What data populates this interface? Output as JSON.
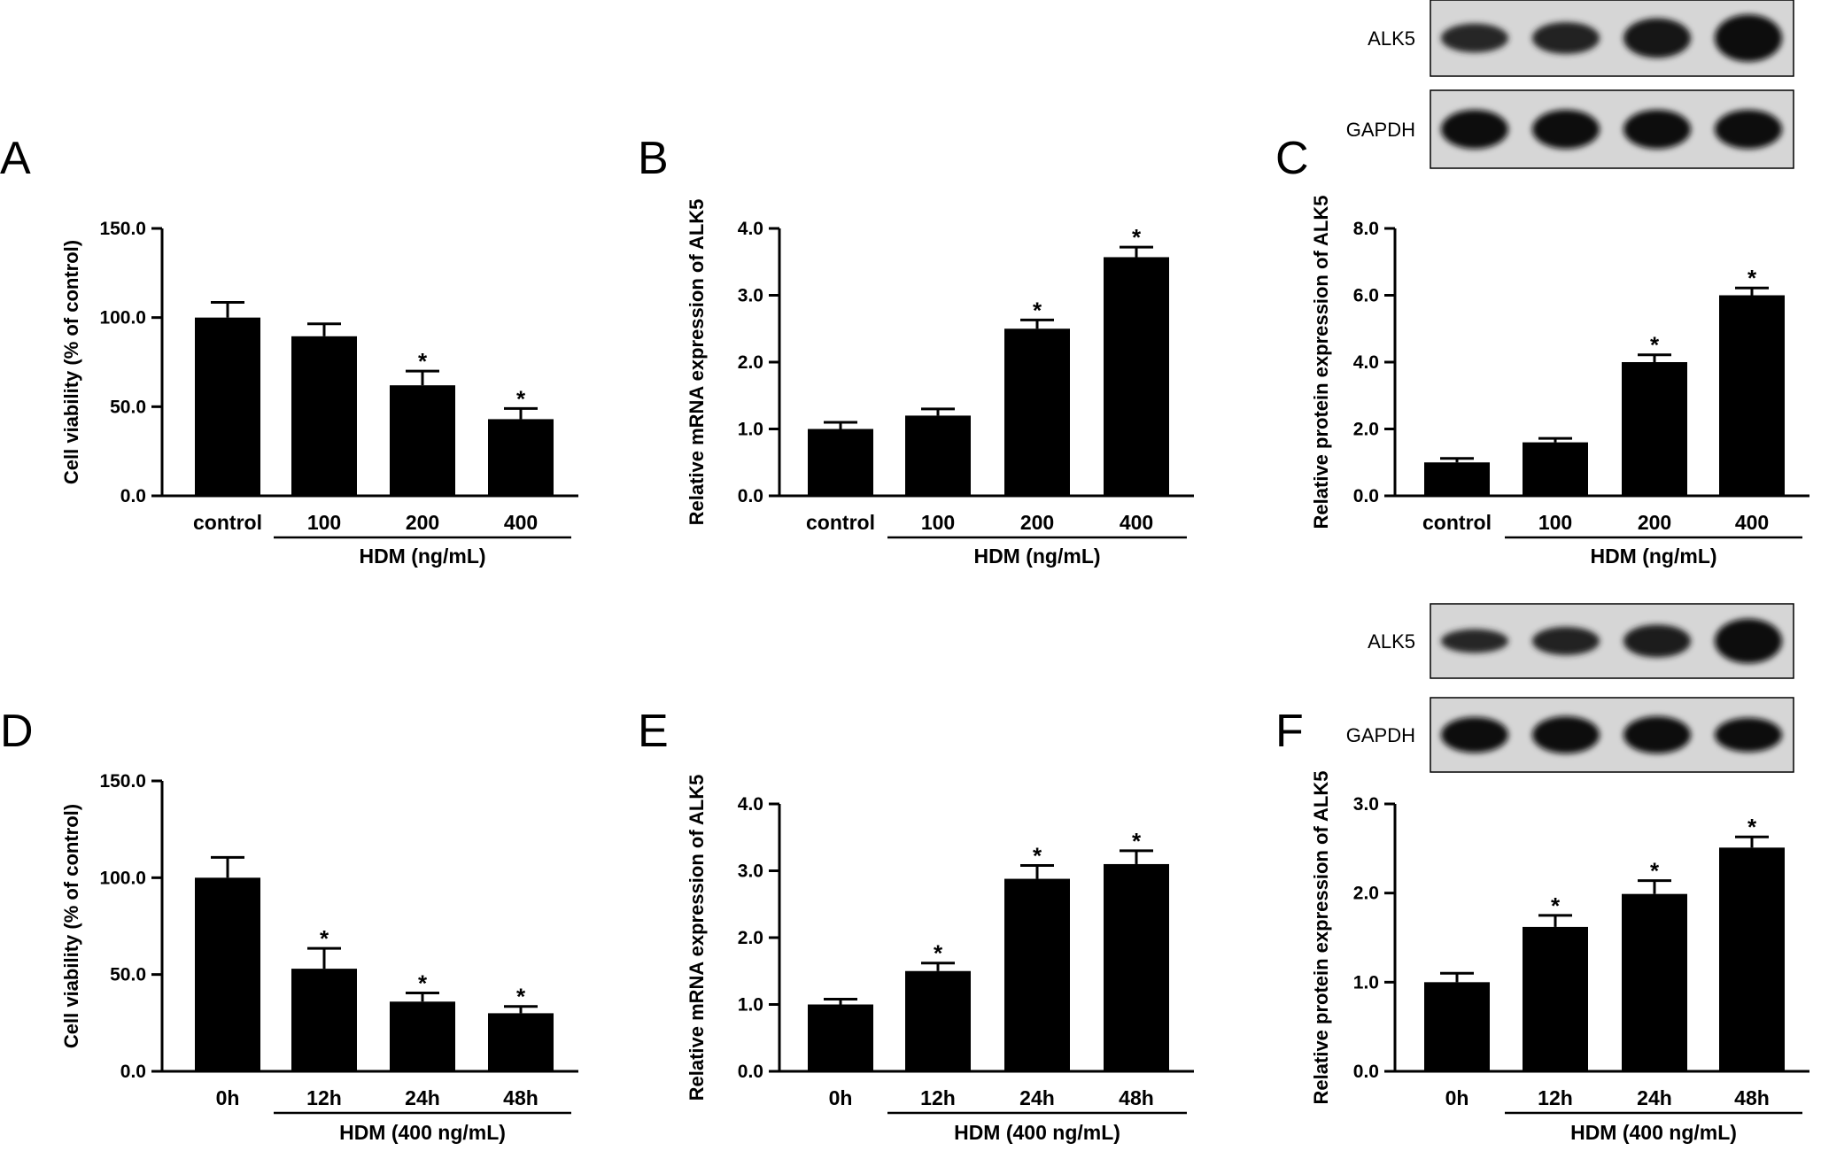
{
  "chart_data": [
    {
      "panel": "A",
      "type": "bar",
      "categories": [
        "control",
        "100",
        "200",
        "400"
      ],
      "values": [
        100.0,
        89.5,
        62.0,
        43.0
      ],
      "errors": [
        8.5,
        7.0,
        8.0,
        6.0
      ],
      "significant": [
        false,
        false,
        true,
        true
      ],
      "significance_marker": "*",
      "ylabel": "Cell viability (% of control)",
      "ylim": [
        0,
        150
      ],
      "yticks": [
        "0.0",
        "50.0",
        "100.0",
        "150.0"
      ],
      "group_label": "HDM (ng/mL)",
      "group_span": [
        1,
        3
      ]
    },
    {
      "panel": "B",
      "type": "bar",
      "categories": [
        "control",
        "100",
        "200",
        "400"
      ],
      "values": [
        1.0,
        1.2,
        2.5,
        3.57
      ],
      "errors": [
        0.1,
        0.1,
        0.13,
        0.15
      ],
      "significant": [
        false,
        false,
        true,
        true
      ],
      "significance_marker": "*",
      "ylabel": "Relative mRNA expression of ALK5",
      "ylim": [
        0,
        4
      ],
      "yticks": [
        "0.0",
        "1.0",
        "2.0",
        "3.0",
        "4.0"
      ],
      "group_label": "HDM (ng/mL)",
      "group_span": [
        1,
        3
      ]
    },
    {
      "panel": "C",
      "type": "bar",
      "categories": [
        "control",
        "100",
        "200",
        "400"
      ],
      "values": [
        1.0,
        1.6,
        4.0,
        6.0
      ],
      "errors": [
        0.12,
        0.12,
        0.22,
        0.22
      ],
      "significant": [
        false,
        false,
        true,
        true
      ],
      "significance_marker": "*",
      "ylabel": "Relative protein expression of ALK5",
      "ylim": [
        0,
        8
      ],
      "yticks": [
        "0.0",
        "2.0",
        "4.0",
        "6.0",
        "8.0"
      ],
      "group_label": "HDM (ng/mL)",
      "group_span": [
        1,
        3
      ],
      "blot": {
        "rows": [
          {
            "label": "ALK5",
            "band_intensity": [
              0.55,
              0.62,
              0.85,
              1.0
            ],
            "band_height": [
              0.38,
              0.42,
              0.52,
              0.62
            ]
          },
          {
            "label": "GAPDH",
            "band_intensity": [
              0.9,
              0.9,
              0.9,
              0.9
            ],
            "band_height": [
              0.5,
              0.5,
              0.5,
              0.5
            ]
          }
        ]
      }
    },
    {
      "panel": "D",
      "type": "bar",
      "categories": [
        "0h",
        "12h",
        "24h",
        "48h"
      ],
      "values": [
        100.0,
        53.0,
        36.0,
        30.0
      ],
      "errors": [
        10.5,
        10.5,
        4.5,
        3.5
      ],
      "significant": [
        false,
        true,
        true,
        true
      ],
      "significance_marker": "*",
      "ylabel": "Cell viability (% of control)",
      "ylim": [
        0,
        150
      ],
      "yticks": [
        "0.0",
        "50.0",
        "100.0",
        "150.0"
      ],
      "group_label": "HDM (400 ng/mL)",
      "group_span": [
        1,
        3
      ]
    },
    {
      "panel": "E",
      "type": "bar",
      "categories": [
        "0h",
        "12h",
        "24h",
        "48h"
      ],
      "values": [
        1.0,
        1.5,
        2.88,
        3.1
      ],
      "errors": [
        0.08,
        0.12,
        0.2,
        0.2
      ],
      "significant": [
        false,
        true,
        true,
        true
      ],
      "significance_marker": "*",
      "ylabel": "Relative mRNA expression of ALK5",
      "ylim": [
        0,
        4
      ],
      "yticks": [
        "0.0",
        "1.0",
        "2.0",
        "3.0",
        "4.0"
      ],
      "group_label": "HDM (400 ng/mL)",
      "group_span": [
        1,
        3
      ]
    },
    {
      "panel": "F",
      "type": "bar",
      "categories": [
        "0h",
        "12h",
        "24h",
        "48h"
      ],
      "values": [
        1.0,
        1.62,
        1.99,
        2.51
      ],
      "errors": [
        0.1,
        0.13,
        0.15,
        0.12
      ],
      "significant": [
        false,
        true,
        true,
        true
      ],
      "significance_marker": "*",
      "ylabel": "Relative protein expression of ALK5",
      "ylim": [
        0,
        3
      ],
      "yticks": [
        "0.0",
        "1.0",
        "2.0",
        "3.0"
      ],
      "group_label": "HDM (400 ng/mL)",
      "group_span": [
        1,
        3
      ],
      "blot": {
        "rows": [
          {
            "label": "ALK5",
            "band_intensity": [
              0.55,
              0.62,
              0.72,
              1.0
            ],
            "band_height": [
              0.32,
              0.38,
              0.44,
              0.6
            ]
          },
          {
            "label": "GAPDH",
            "band_intensity": [
              0.9,
              0.92,
              0.92,
              0.88
            ],
            "band_height": [
              0.48,
              0.5,
              0.5,
              0.46
            ]
          }
        ]
      }
    }
  ]
}
